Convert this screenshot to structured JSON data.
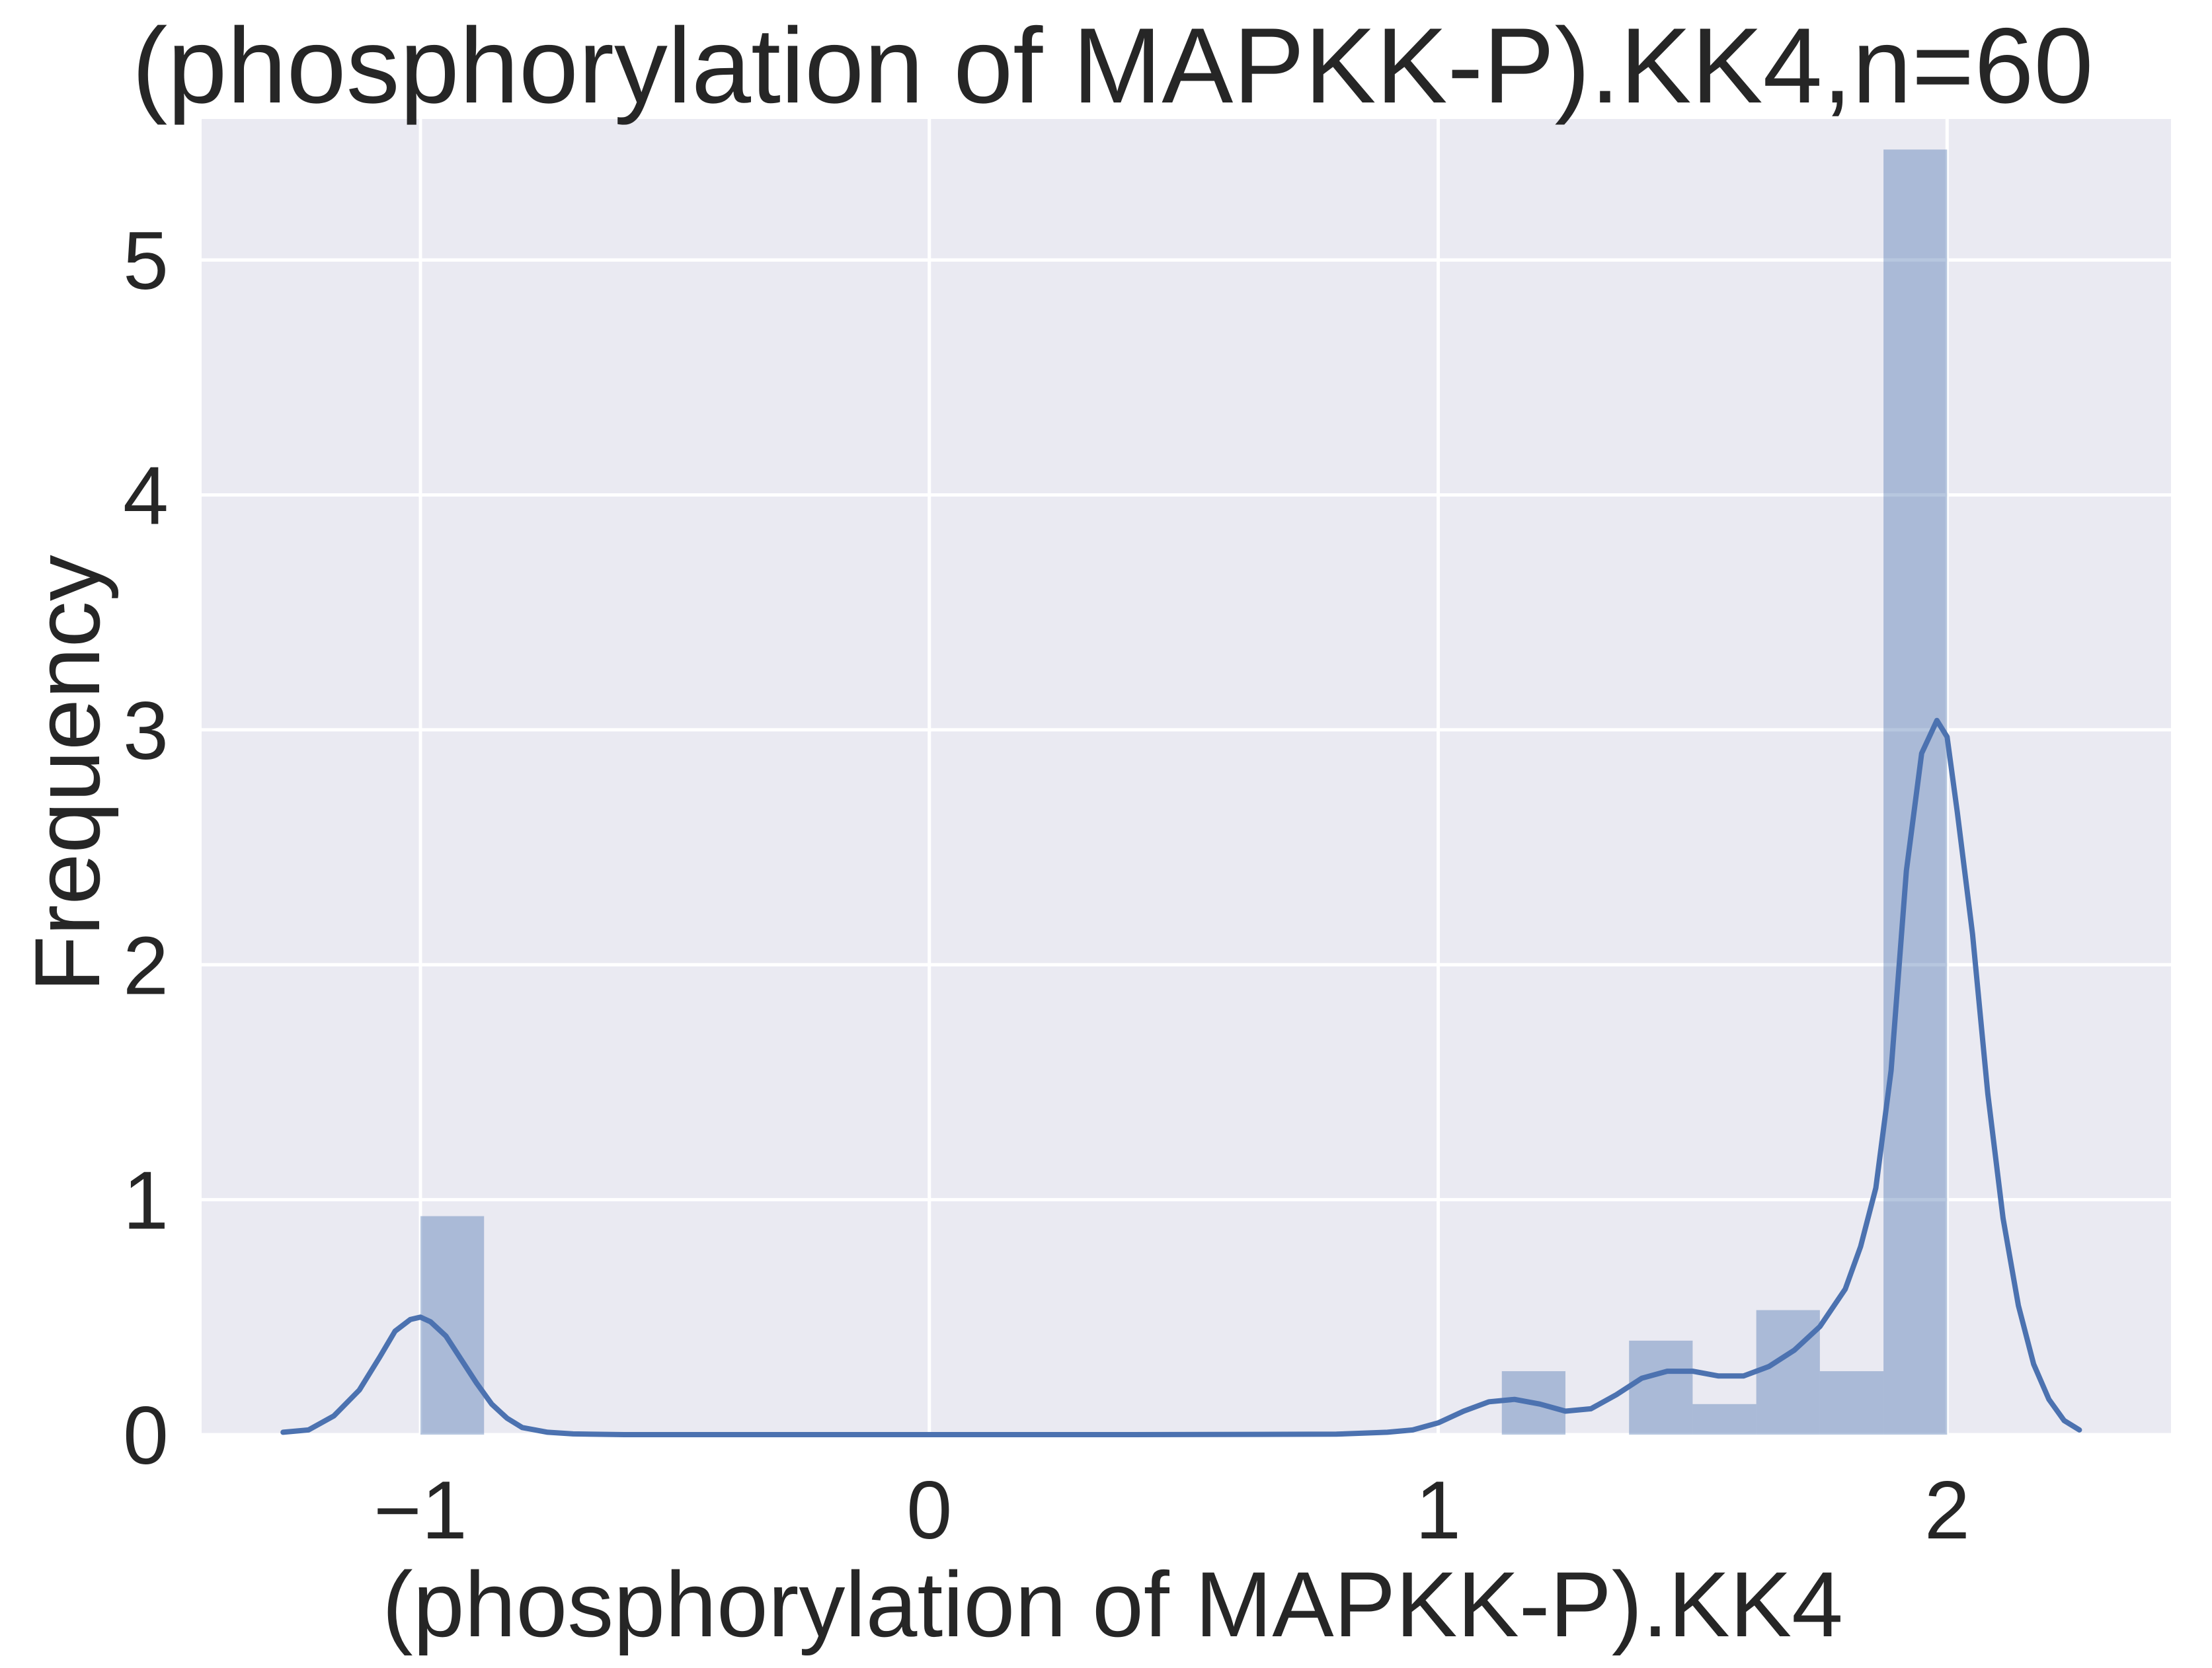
{
  "chart_data": {
    "type": "bar",
    "title": "(phosphorylation of MAPKK-P).KK4,n=60",
    "xlabel": "(phosphorylation of MAPKK-P).KK4",
    "ylabel": "Frequency",
    "xlim": [
      -1.43,
      2.44
    ],
    "ylim": [
      0,
      5.6
    ],
    "xticks": [
      -1,
      0,
      1,
      2
    ],
    "xtick_labels": [
      "−1",
      "0",
      "1",
      "2"
    ],
    "yticks": [
      0,
      1,
      2,
      3,
      4,
      5
    ],
    "ytick_labels": [
      "0",
      "1",
      "2",
      "3",
      "4",
      "5"
    ],
    "grid": true,
    "background_color": "#eaeaf2",
    "grid_color": "#ffffff",
    "bar_color": "#4c72b0",
    "bar_alpha": 0.4,
    "line_color": "#4c72b0",
    "bins": [
      {
        "x0": -1.0,
        "x1": -0.875,
        "value": 0.93
      },
      {
        "x0": -0.875,
        "x1": -0.75,
        "value": 0
      },
      {
        "x0": -0.75,
        "x1": -0.625,
        "value": 0
      },
      {
        "x0": -0.625,
        "x1": -0.5,
        "value": 0
      },
      {
        "x0": -0.5,
        "x1": -0.375,
        "value": 0
      },
      {
        "x0": -0.375,
        "x1": -0.25,
        "value": 0
      },
      {
        "x0": -0.25,
        "x1": -0.125,
        "value": 0
      },
      {
        "x0": -0.125,
        "x1": 0.0,
        "value": 0
      },
      {
        "x0": 0.0,
        "x1": 0.125,
        "value": 0
      },
      {
        "x0": 0.125,
        "x1": 0.25,
        "value": 0
      },
      {
        "x0": 0.25,
        "x1": 0.375,
        "value": 0
      },
      {
        "x0": 0.375,
        "x1": 0.5,
        "value": 0
      },
      {
        "x0": 0.5,
        "x1": 0.625,
        "value": 0
      },
      {
        "x0": 0.625,
        "x1": 0.75,
        "value": 0
      },
      {
        "x0": 0.75,
        "x1": 0.875,
        "value": 0
      },
      {
        "x0": 0.875,
        "x1": 1.0,
        "value": 0
      },
      {
        "x0": 1.0,
        "x1": 1.125,
        "value": 0
      },
      {
        "x0": 1.125,
        "x1": 1.25,
        "value": 0.27
      },
      {
        "x0": 1.25,
        "x1": 1.375,
        "value": 0
      },
      {
        "x0": 1.375,
        "x1": 1.5,
        "value": 0.4
      },
      {
        "x0": 1.5,
        "x1": 1.625,
        "value": 0.13
      },
      {
        "x0": 1.625,
        "x1": 1.75,
        "value": 0.53
      },
      {
        "x0": 1.75,
        "x1": 1.875,
        "value": 0.27
      },
      {
        "x0": 1.875,
        "x1": 2.0,
        "value": 5.47
      }
    ],
    "kde": {
      "x": [
        -1.27,
        -1.22,
        -1.17,
        -1.12,
        -1.08,
        -1.05,
        -1.02,
        -1.0,
        -0.98,
        -0.95,
        -0.92,
        -0.89,
        -0.86,
        -0.83,
        -0.8,
        -0.75,
        -0.7,
        -0.6,
        -0.4,
        0.0,
        0.4,
        0.8,
        0.9,
        0.95,
        1.0,
        1.05,
        1.1,
        1.15,
        1.2,
        1.25,
        1.3,
        1.35,
        1.4,
        1.45,
        1.5,
        1.55,
        1.6,
        1.65,
        1.7,
        1.75,
        1.8,
        1.83,
        1.86,
        1.89,
        1.92,
        1.95,
        1.98,
        2.0,
        2.02,
        2.05,
        2.08,
        2.11,
        2.14,
        2.17,
        2.2,
        2.23,
        2.26
      ],
      "y": [
        0.01,
        0.02,
        0.08,
        0.19,
        0.33,
        0.44,
        0.49,
        0.5,
        0.48,
        0.42,
        0.32,
        0.22,
        0.13,
        0.07,
        0.03,
        0.01,
        0.003,
        0,
        0,
        0,
        0,
        0.002,
        0.01,
        0.02,
        0.05,
        0.1,
        0.14,
        0.15,
        0.13,
        0.1,
        0.11,
        0.17,
        0.24,
        0.27,
        0.27,
        0.25,
        0.25,
        0.29,
        0.36,
        0.46,
        0.62,
        0.8,
        1.05,
        1.55,
        2.4,
        2.9,
        3.04,
        2.97,
        2.65,
        2.13,
        1.45,
        0.92,
        0.55,
        0.3,
        0.15,
        0.06,
        0.02
      ]
    }
  }
}
